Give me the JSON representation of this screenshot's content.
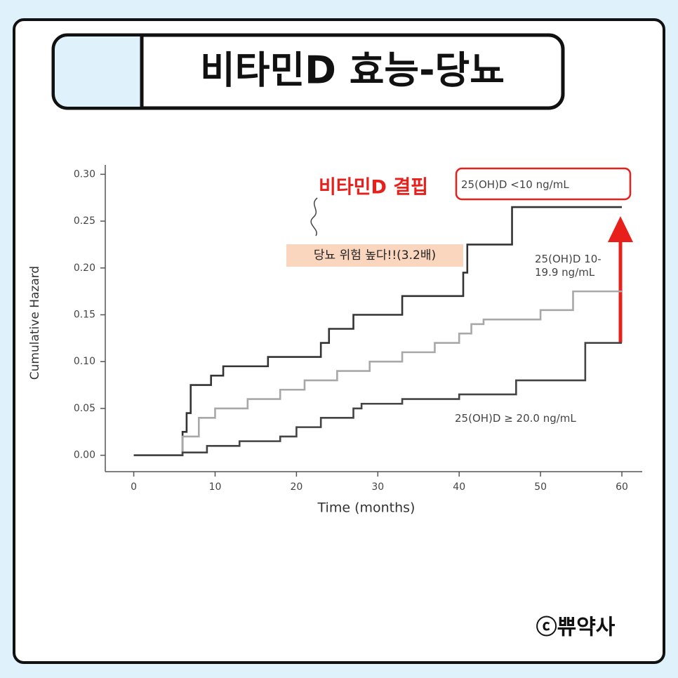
{
  "chart_data": {
    "type": "step",
    "title": "비타민D 효능-당뇨",
    "x_label": "Time (months)",
    "y_label": "Cumulative Hazard",
    "xlim": [
      -3.5,
      62.5
    ],
    "ylim": [
      -0.0175,
      0.31
    ],
    "xticks": [
      0,
      10,
      20,
      30,
      40,
      50,
      60
    ],
    "yticks": [
      {
        "value": 0,
        "label": "0.00"
      },
      {
        "value": 0.05,
        "label": "0.05"
      },
      {
        "value": 0.1,
        "label": "0.10"
      },
      {
        "value": 0.15,
        "label": "0.15"
      },
      {
        "value": 0.2,
        "label": "0.20"
      },
      {
        "value": 0.25,
        "label": "0.25"
      },
      {
        "value": 0.3,
        "label": "0.30"
      }
    ],
    "series": [
      {
        "name": "25(OH)D  <10 ng/mL",
        "color": "#333333",
        "x": [
          0,
          6,
          6.5,
          7,
          9.5,
          11,
          16.5,
          23,
          24,
          27,
          33,
          40.5,
          41,
          46.5,
          60
        ],
        "values": [
          0,
          0.025,
          0.045,
          0.075,
          0.085,
          0.095,
          0.105,
          0.12,
          0.135,
          0.15,
          0.17,
          0.195,
          0.225,
          0.265,
          0.265
        ]
      },
      {
        "name": "25(OH)D 10-19.9 ng/mL",
        "color": "#a8a8a8",
        "x": [
          0,
          6,
          8,
          10,
          14,
          18,
          21,
          25,
          29,
          33,
          37,
          40,
          41.5,
          43,
          50,
          54,
          60
        ],
        "values": [
          0,
          0.02,
          0.04,
          0.05,
          0.06,
          0.07,
          0.08,
          0.09,
          0.1,
          0.11,
          0.12,
          0.13,
          0.14,
          0.145,
          0.155,
          0.175,
          0.175
        ]
      },
      {
        "name": "25(OH)D  ≥ 20.0 ng/mL",
        "color": "#444444",
        "x": [
          0,
          6,
          9,
          13,
          18,
          20,
          23,
          27,
          28,
          33,
          40,
          47,
          55.5,
          60
        ],
        "values": [
          0,
          0.003,
          0.01,
          0.015,
          0.02,
          0.03,
          0.04,
          0.05,
          0.055,
          0.06,
          0.065,
          0.08,
          0.12,
          0.12
        ]
      }
    ],
    "annotations": [
      "비타민D 결핍",
      "당뇨 위험 높다!!(3.2배)"
    ]
  },
  "credit": "ⓒ쀼약사"
}
